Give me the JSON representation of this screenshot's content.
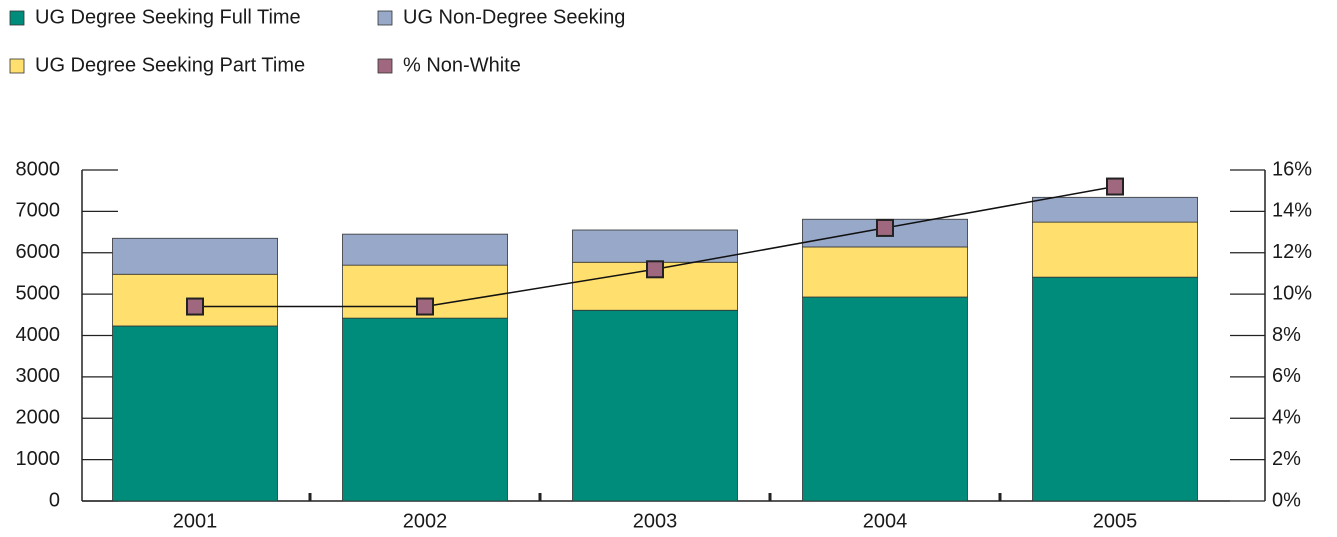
{
  "chart_data": {
    "type": "bar",
    "stacked": true,
    "categories": [
      "2001",
      "2002",
      "2003",
      "2004",
      "2005"
    ],
    "series": [
      {
        "name": "UG Degree Seeking Full Time",
        "color": "#008c7a",
        "values": [
          4230,
          4420,
          4610,
          4930,
          5410
        ]
      },
      {
        "name": "UG Degree Seeking Part Time",
        "color": "#ffdf6e",
        "values": [
          1250,
          1280,
          1160,
          1210,
          1330
        ]
      },
      {
        "name": "UG Non-Degree Seeking",
        "color": "#97a8c8",
        "values": [
          870,
          750,
          780,
          670,
          600
        ]
      },
      {
        "name": "% Non-White",
        "color": "#a0687f",
        "type": "line",
        "axis": "y2",
        "values": [
          9.4,
          9.4,
          11.2,
          13.2,
          15.2
        ]
      }
    ],
    "ylim": [
      0,
      8000
    ],
    "yticks": [
      0,
      1000,
      2000,
      3000,
      4000,
      5000,
      6000,
      7000,
      8000
    ],
    "y2lim": [
      0,
      16
    ],
    "y2ticks": [
      {
        "value": 0,
        "label": "0%"
      },
      {
        "value": 2,
        "label": "2%"
      },
      {
        "value": 4,
        "label": "4%"
      },
      {
        "value": 6,
        "label": "6%"
      },
      {
        "value": 8,
        "label": "8%"
      },
      {
        "value": 10,
        "label": "10%"
      },
      {
        "value": 12,
        "label": "12%"
      },
      {
        "value": 14,
        "label": "14%"
      },
      {
        "value": 16,
        "label": "16%"
      }
    ],
    "legend_order": [
      0,
      2,
      1,
      3
    ]
  }
}
